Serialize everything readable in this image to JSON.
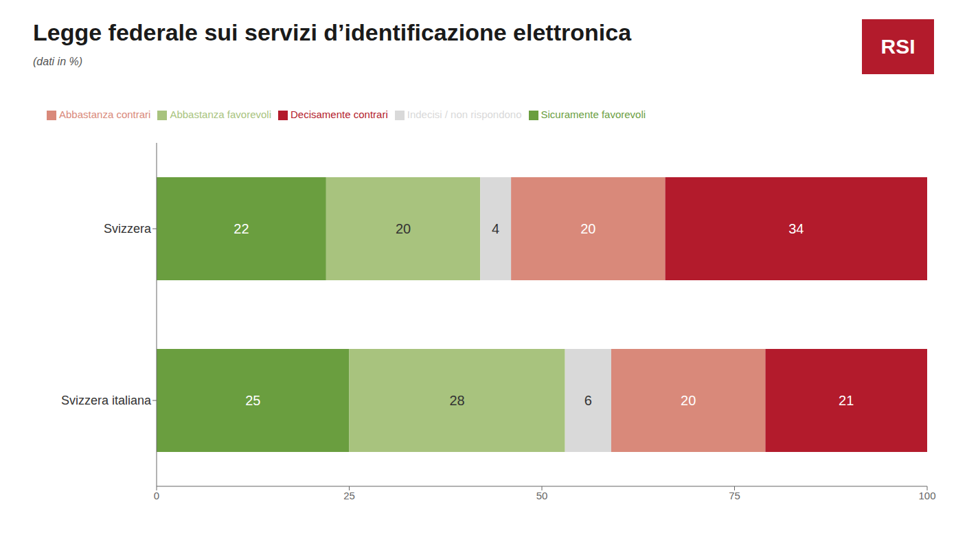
{
  "chart_data": {
    "type": "bar",
    "orientation": "horizontal",
    "stacked": true,
    "data_labels": true,
    "grid": false,
    "legend": "top",
    "title": "Legge federale sui servizi d’identificazione elettronica",
    "subtitle": "(dati in %)",
    "annotations": [
      {
        "text": "RSI",
        "color": "#b31b2c"
      }
    ],
    "categories": [
      "Svizzera",
      "Svizzera italiana"
    ],
    "series": [
      {
        "name": "Sicuramente favorevoli",
        "color": "#6a9e3f",
        "values": [
          22,
          25
        ]
      },
      {
        "name": "Abbastanza favorevoli",
        "color": "#a8c37e",
        "values": [
          20,
          28
        ]
      },
      {
        "name": "Indecisi / non rispondono",
        "color": "#d9d9d9",
        "values": [
          4,
          6
        ]
      },
      {
        "name": "Abbastanza contrari",
        "color": "#d9897a",
        "values": [
          20,
          20
        ]
      },
      {
        "name": "Decisamente contrari",
        "color": "#b31b2c",
        "values": [
          34,
          21
        ]
      }
    ],
    "xlim": [
      0,
      100
    ],
    "xticks": [
      0,
      25,
      50,
      75,
      100
    ]
  }
}
